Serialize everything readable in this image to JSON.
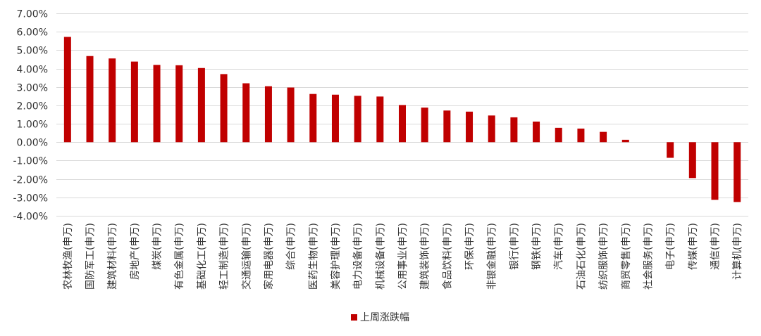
{
  "chart_data": {
    "type": "bar",
    "title": "",
    "xlabel": "",
    "ylabel": "",
    "ylim": [
      -0.04,
      0.07
    ],
    "yticks": [
      0.07,
      0.06,
      0.05,
      0.04,
      0.03,
      0.02,
      0.01,
      0.0,
      -0.01,
      -0.02,
      -0.03,
      -0.04
    ],
    "ytick_labels": [
      "7.00%",
      "6.00%",
      "5.00%",
      "4.00%",
      "3.00%",
      "2.00%",
      "1.00%",
      "0.00%",
      "-1.00%",
      "-2.00%",
      "-3.00%",
      "-4.00%"
    ],
    "grid": true,
    "legend_position": "bottom",
    "categories": [
      "农林牧渔(申万)",
      "国防军工(申万)",
      "建筑材料(申万)",
      "房地产(申万)",
      "煤炭(申万)",
      "有色金属(申万)",
      "基础化工(申万)",
      "轻工制造(申万)",
      "交通运输(申万)",
      "家用电器(申万)",
      "综合(申万)",
      "医药生物(申万)",
      "美容护理(申万)",
      "电力设备(申万)",
      "机械设备(申万)",
      "公用事业(申万)",
      "建筑装饰(申万)",
      "食品饮料(申万)",
      "环保(申万)",
      "非银金融(申万)",
      "银行(申万)",
      "钢铁(申万)",
      "汽车(申万)",
      "石油石化(申万)",
      "纺织服饰(申万)",
      "商贸零售(申万)",
      "社会服务(申万)",
      "电子(申万)",
      "传媒(申万)",
      "通信(申万)",
      "计算机(申万)"
    ],
    "series": [
      {
        "name": "上周涨跌幅",
        "color": "#C00000",
        "values": [
          0.0572,
          0.0468,
          0.0455,
          0.0438,
          0.042,
          0.0418,
          0.0403,
          0.037,
          0.032,
          0.0304,
          0.0297,
          0.0262,
          0.0258,
          0.0252,
          0.0248,
          0.0202,
          0.0188,
          0.0172,
          0.0166,
          0.0145,
          0.0135,
          0.0112,
          0.0078,
          0.0074,
          0.0056,
          0.0013,
          0.0,
          -0.0085,
          -0.0195,
          -0.0313,
          -0.0325
        ]
      }
    ]
  },
  "colors": {
    "bar": "#C00000",
    "grid": "#D9D9D9",
    "axis_text": "#333333"
  }
}
